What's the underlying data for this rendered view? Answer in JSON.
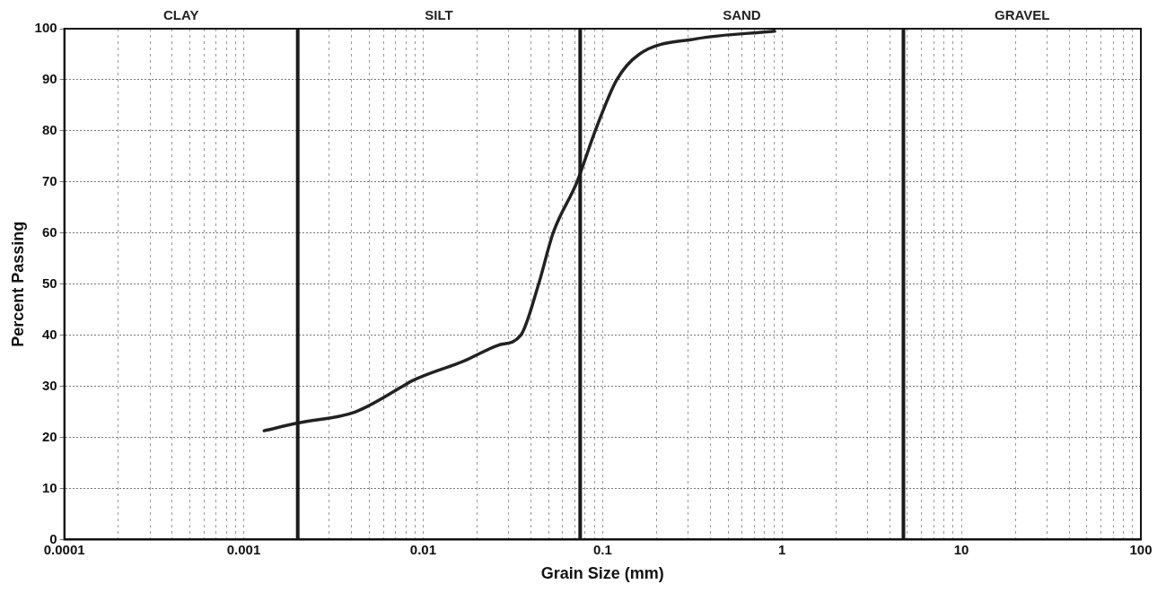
{
  "chart_data": {
    "type": "line",
    "xlabel": "Grain Size (mm)",
    "ylabel": "Percent Passing",
    "log": "x",
    "grid": true,
    "legend": false,
    "marker": "none",
    "line_style": "solid",
    "xlim": [
      0.0001,
      100
    ],
    "ylim": [
      0,
      100
    ],
    "xticks": [
      0.0001,
      {
        "value": 0.0002,
        "label": null
      },
      {
        "value": 0.0003,
        "label": null
      },
      {
        "value": 0.0004,
        "label": null
      },
      {
        "value": 0.0005,
        "label": null
      },
      {
        "value": 0.0006,
        "label": null
      },
      {
        "value": 0.0007,
        "label": null
      },
      {
        "value": 0.0008,
        "label": null
      },
      {
        "value": 0.0009,
        "label": null
      },
      0.001,
      {
        "value": 0.002,
        "label": null
      },
      {
        "value": 0.003,
        "label": null
      },
      {
        "value": 0.004,
        "label": null
      },
      {
        "value": 0.005,
        "label": null
      },
      {
        "value": 0.006,
        "label": null
      },
      {
        "value": 0.007,
        "label": null
      },
      {
        "value": 0.008,
        "label": null
      },
      {
        "value": 0.009,
        "label": null
      },
      0.01,
      {
        "value": 0.02,
        "label": null
      },
      {
        "value": 0.03,
        "label": null
      },
      {
        "value": 0.04,
        "label": null
      },
      {
        "value": 0.05,
        "label": null
      },
      {
        "value": 0.06,
        "label": null
      },
      {
        "value": 0.07,
        "label": null
      },
      {
        "value": 0.08,
        "label": null
      },
      {
        "value": 0.09,
        "label": null
      },
      0.1,
      {
        "value": 0.2,
        "label": null
      },
      {
        "value": 0.3,
        "label": null
      },
      {
        "value": 0.4,
        "label": null
      },
      {
        "value": 0.5,
        "label": null
      },
      {
        "value": 0.6,
        "label": null
      },
      {
        "value": 0.7,
        "label": null
      },
      {
        "value": 0.8,
        "label": null
      },
      {
        "value": 0.9,
        "label": null
      },
      1,
      {
        "value": 2,
        "label": null
      },
      {
        "value": 3,
        "label": null
      },
      {
        "value": 4,
        "label": null
      },
      {
        "value": 5,
        "label": null
      },
      {
        "value": 6,
        "label": null
      },
      {
        "value": 7,
        "label": null
      },
      {
        "value": 8,
        "label": null
      },
      {
        "value": 9,
        "label": null
      },
      10,
      {
        "value": 20,
        "label": null
      },
      {
        "value": 30,
        "label": null
      },
      {
        "value": 40,
        "label": null
      },
      {
        "value": 50,
        "label": null
      },
      {
        "value": 60,
        "label": null
      },
      {
        "value": 70,
        "label": null
      },
      {
        "value": 80,
        "label": null
      },
      {
        "value": 90,
        "label": null
      },
      100
    ],
    "yticks": [
      0,
      10,
      20,
      30,
      40,
      50,
      60,
      70,
      80,
      90,
      100
    ],
    "series": [
      {
        "color": "#222222",
        "x": [
          0.0013,
          0.002,
          0.0042,
          0.0077,
          0.0086,
          0.017,
          0.026,
          0.035,
          0.044,
          0.053,
          0.072,
          0.091,
          0.12,
          0.16,
          0.33,
          0.91
        ],
        "values": [
          21.3,
          22.8,
          25,
          30,
          31,
          35,
          38,
          40,
          50,
          60,
          70,
          80,
          90,
          95,
          98,
          99.5
        ]
      }
    ],
    "ref_lines": [
      {
        "axis": "x",
        "value": 0.002,
        "color": "#1a1a1a"
      },
      {
        "axis": "x",
        "value": 0.075,
        "color": "#1a1a1a"
      },
      {
        "axis": "x",
        "value": 4.75,
        "color": "#1a1a1a"
      }
    ],
    "annotations": [
      "CLAY",
      "SILT",
      "SAND",
      "GRAVEL"
    ]
  }
}
